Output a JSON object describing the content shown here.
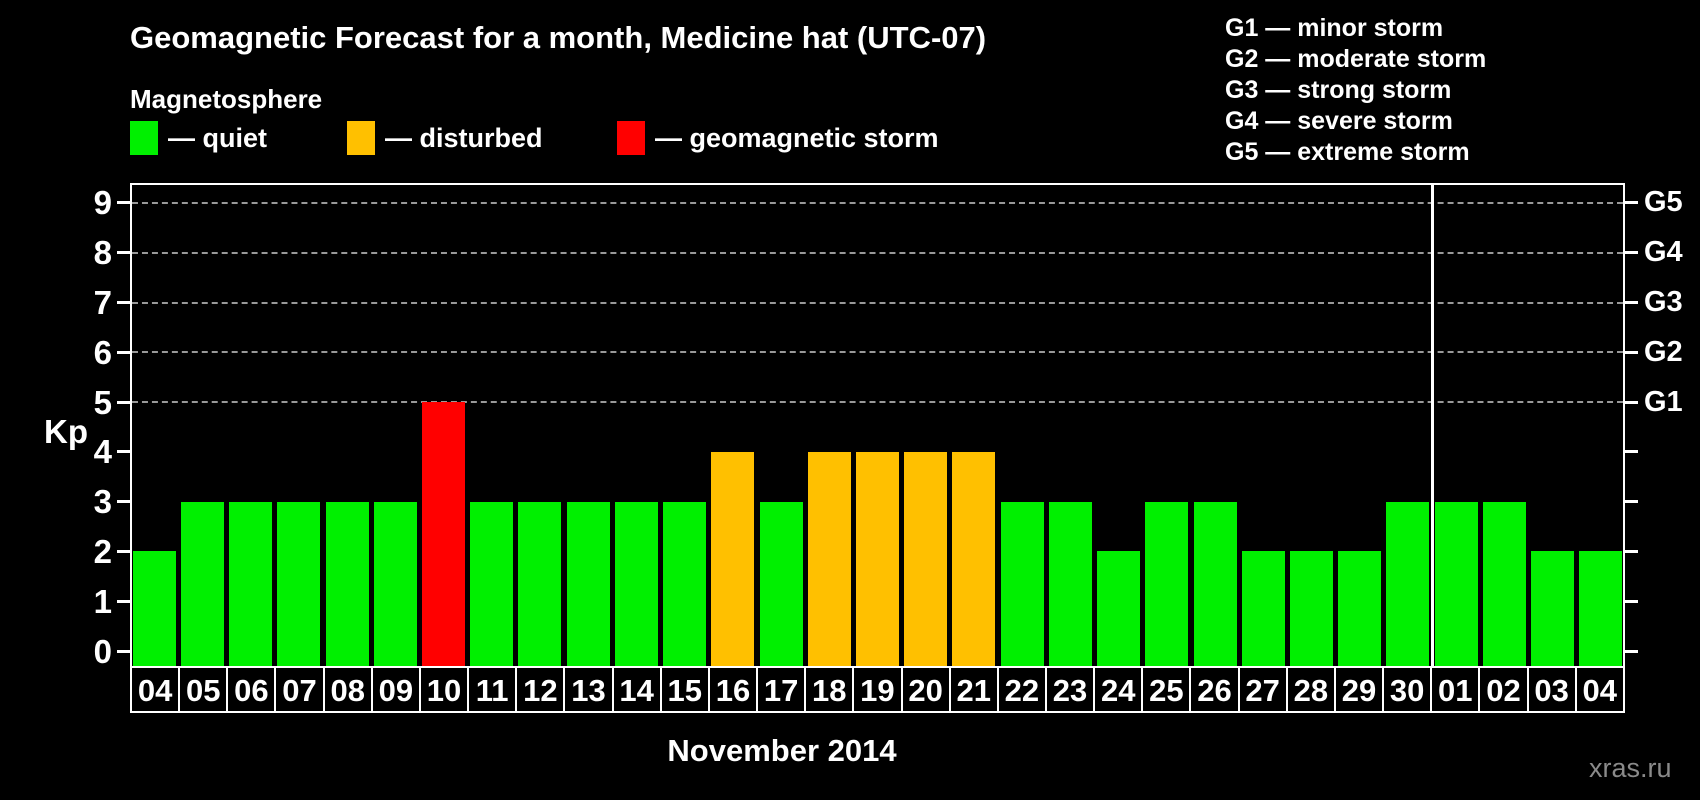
{
  "title": "Geomagnetic Forecast for a month, Medicine hat (UTC-07)",
  "magnetosphere": {
    "heading": "Magnetosphere",
    "legend": [
      {
        "key": "quiet",
        "label": "— quiet",
        "color": "#00f000"
      },
      {
        "key": "disturbed",
        "label": "— disturbed",
        "color": "#ffc000"
      },
      {
        "key": "storm",
        "label": "— geomagnetic storm",
        "color": "#ff0000"
      }
    ]
  },
  "g_scale_legend": [
    "G1 — minor storm",
    "G2 — moderate storm",
    "G3 — strong storm",
    "G4 — severe storm",
    "G5 — extreme storm"
  ],
  "watermark": "xras.ru",
  "chart_data": {
    "type": "bar",
    "title": "Geomagnetic Forecast for a month, Medicine hat (UTC-07)",
    "ylabel": "Kp",
    "xlabel": "November 2014",
    "ylim": [
      0,
      9
    ],
    "yticks": [
      0,
      1,
      2,
      3,
      4,
      5,
      6,
      7,
      8,
      9
    ],
    "gridlines_at_kp": [
      5,
      6,
      7,
      8,
      9
    ],
    "grid": "dashed horizontal lines at Kp 5-9 only",
    "legend_position": "top-left",
    "right_axis": [
      {
        "kp": 5,
        "label": "G1"
      },
      {
        "kp": 6,
        "label": "G2"
      },
      {
        "kp": 7,
        "label": "G3"
      },
      {
        "kp": 8,
        "label": "G4"
      },
      {
        "kp": 9,
        "label": "G5"
      }
    ],
    "categories": [
      "04",
      "05",
      "06",
      "07",
      "08",
      "09",
      "10",
      "11",
      "12",
      "13",
      "14",
      "15",
      "16",
      "17",
      "18",
      "19",
      "20",
      "21",
      "22",
      "23",
      "24",
      "25",
      "26",
      "27",
      "28",
      "29",
      "30",
      "01",
      "02",
      "03",
      "04"
    ],
    "values": [
      2,
      3,
      3,
      3,
      3,
      3,
      5,
      3,
      3,
      3,
      3,
      3,
      4,
      3,
      4,
      4,
      4,
      4,
      3,
      3,
      2,
      3,
      3,
      2,
      2,
      2,
      3,
      3,
      3,
      2,
      2
    ],
    "statuses": [
      "quiet",
      "quiet",
      "quiet",
      "quiet",
      "quiet",
      "quiet",
      "storm",
      "quiet",
      "quiet",
      "quiet",
      "quiet",
      "quiet",
      "disturbed",
      "quiet",
      "disturbed",
      "disturbed",
      "disturbed",
      "disturbed",
      "quiet",
      "quiet",
      "quiet",
      "quiet",
      "quiet",
      "quiet",
      "quiet",
      "quiet",
      "quiet",
      "quiet",
      "quiet",
      "quiet",
      "quiet"
    ],
    "month_boundary_after_index": 26,
    "colors": {
      "quiet": "#00f000",
      "disturbed": "#ffc000",
      "storm": "#ff0000"
    }
  }
}
